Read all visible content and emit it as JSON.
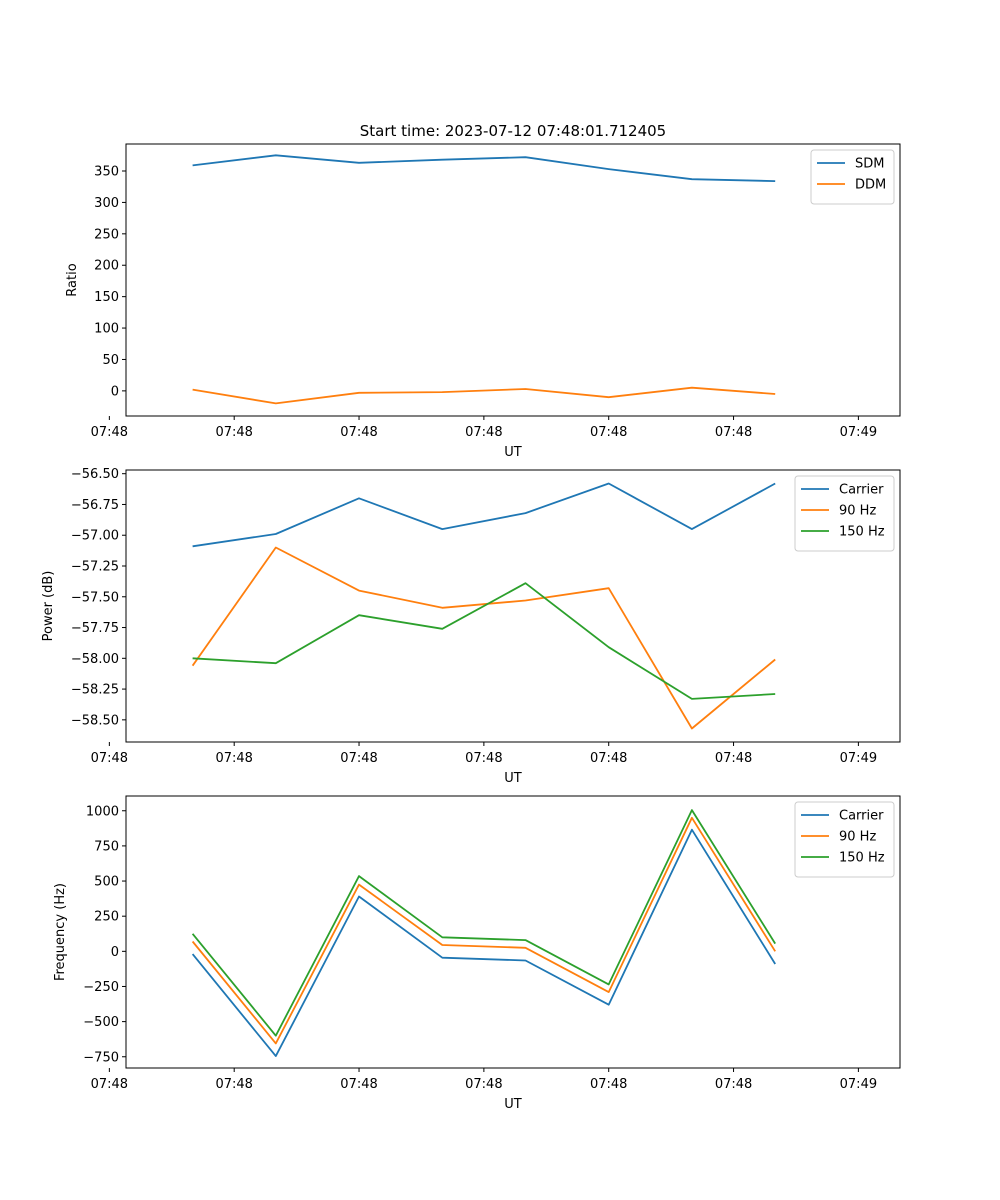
{
  "title": "Start time: 2023-07-12 07:48:01.712405",
  "colors": {
    "blue": "#1f77b4",
    "orange": "#ff7f0e",
    "green": "#2ca02c"
  },
  "chart_data": [
    {
      "type": "line",
      "title": "Start time: 2023-07-12 07:48:01.712405",
      "xlabel": "UT",
      "ylabel": "Ratio",
      "x": [
        1,
        2,
        3,
        4,
        5,
        6,
        7,
        8
      ],
      "xlim": [
        0.2,
        9.5
      ],
      "x_ticks": [
        0,
        1.5,
        3,
        4.5,
        6,
        7.5,
        9
      ],
      "x_tick_labels": [
        "07:48",
        "07:48",
        "07:48",
        "07:48",
        "07:48",
        "07:48",
        "07:49"
      ],
      "ylim": [
        -40,
        393
      ],
      "y_ticks": [
        0,
        50,
        100,
        150,
        200,
        250,
        300,
        350
      ],
      "y_tick_labels": [
        "0",
        "50",
        "100",
        "150",
        "200",
        "250",
        "300",
        "350"
      ],
      "legend": "top-right",
      "series": [
        {
          "name": "SDM",
          "color": "#1f77b4",
          "values": [
            359,
            375,
            363,
            368,
            372,
            353,
            337,
            334
          ]
        },
        {
          "name": "DDM",
          "color": "#ff7f0e",
          "values": [
            2,
            -20,
            -3,
            -2,
            3,
            -10,
            5,
            -5
          ]
        }
      ]
    },
    {
      "type": "line",
      "title": "",
      "xlabel": "UT",
      "ylabel": "Power (dB)",
      "x": [
        1,
        2,
        3,
        4,
        5,
        6,
        7,
        8
      ],
      "xlim": [
        0.2,
        9.5
      ],
      "x_ticks": [
        0,
        1.5,
        3,
        4.5,
        6,
        7.5,
        9
      ],
      "x_tick_labels": [
        "07:48",
        "07:48",
        "07:48",
        "07:48",
        "07:48",
        "07:48",
        "07:49"
      ],
      "ylim": [
        -58.68,
        -56.47
      ],
      "y_ticks": [
        -56.5,
        -56.75,
        -57.0,
        -57.25,
        -57.5,
        -57.75,
        -58.0,
        -58.25,
        -58.5
      ],
      "y_tick_labels": [
        "−56.50",
        "−56.75",
        "−57.00",
        "−57.25",
        "−57.50",
        "−57.75",
        "−58.00",
        "−58.25",
        "−58.50"
      ],
      "legend": "top-right",
      "series": [
        {
          "name": "Carrier",
          "color": "#1f77b4",
          "values": [
            -57.09,
            -56.99,
            -56.7,
            -56.95,
            -56.82,
            -56.58,
            -56.95,
            -56.58
          ]
        },
        {
          "name": "90 Hz",
          "color": "#ff7f0e",
          "values": [
            -58.06,
            -57.1,
            -57.45,
            -57.59,
            -57.53,
            -57.43,
            -58.57,
            -58.01
          ]
        },
        {
          "name": "150 Hz",
          "color": "#2ca02c",
          "values": [
            -58.0,
            -58.04,
            -57.65,
            -57.76,
            -57.39,
            -57.91,
            -58.33,
            -58.29
          ]
        }
      ]
    },
    {
      "type": "line",
      "title": "",
      "xlabel": "UT",
      "ylabel": "Frequency (Hz)",
      "x": [
        1,
        2,
        3,
        4,
        5,
        6,
        7,
        8
      ],
      "xlim": [
        0.2,
        9.5
      ],
      "x_ticks": [
        0,
        1.5,
        3,
        4.5,
        6,
        7.5,
        9
      ],
      "x_tick_labels": [
        "07:48",
        "07:48",
        "07:48",
        "07:48",
        "07:48",
        "07:48",
        "07:49"
      ],
      "ylim": [
        -830,
        1105
      ],
      "y_ticks": [
        1000,
        750,
        500,
        250,
        0,
        -250,
        -500,
        -750
      ],
      "y_tick_labels": [
        "1000",
        "750",
        "500",
        "250",
        "0",
        "−250",
        "−500",
        "−750"
      ],
      "legend": "top-right",
      "series": [
        {
          "name": "Carrier",
          "color": "#1f77b4",
          "values": [
            -20,
            -745,
            390,
            -45,
            -65,
            -380,
            865,
            -90
          ]
        },
        {
          "name": "90 Hz",
          "color": "#ff7f0e",
          "values": [
            70,
            -655,
            475,
            45,
            25,
            -290,
            950,
            0
          ]
        },
        {
          "name": "150 Hz",
          "color": "#2ca02c",
          "values": [
            125,
            -600,
            535,
            100,
            80,
            -235,
            1005,
            55
          ]
        }
      ]
    }
  ]
}
